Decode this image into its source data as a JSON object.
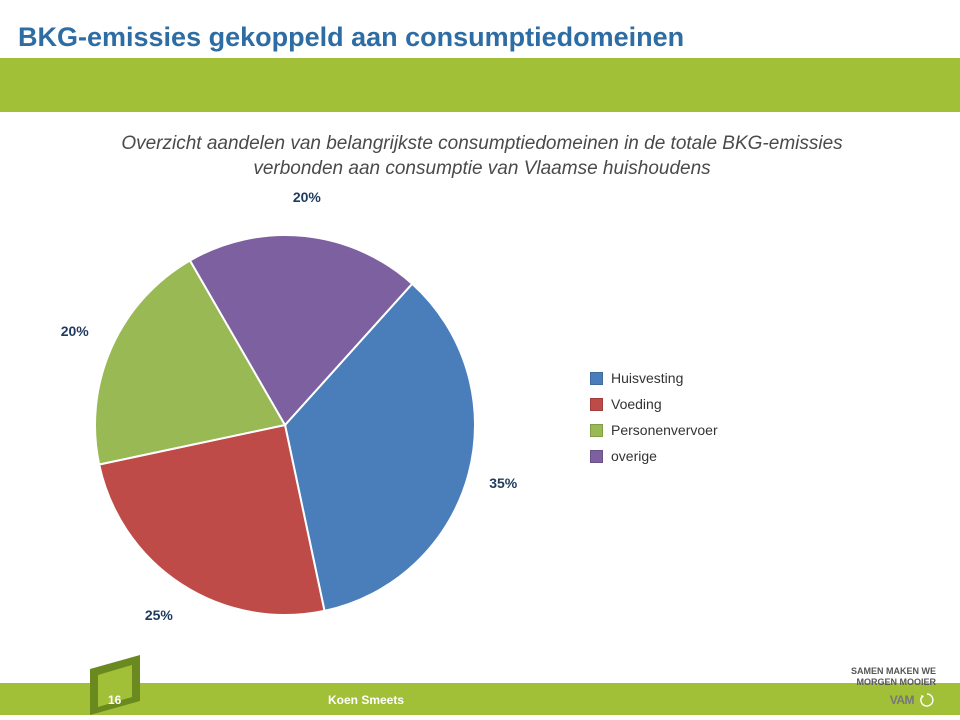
{
  "title": "BKG-emissies gekoppeld aan consumptiedomeinen",
  "subtitle": "Overzicht aandelen van belangrijkste consumptiedomeinen in de totale BKG-emissies verbonden aan consumptie van Vlaamse huishoudens",
  "chart": {
    "type": "pie",
    "start_angle_deg": -48,
    "stroke": "#ffffff",
    "stroke_width": 2,
    "radius": 190,
    "label_radius": 228,
    "label_fontsize": 14,
    "label_color": "#1f3a5f",
    "background_color": "#ffffff",
    "series": [
      {
        "label": "Huisvesting",
        "value": 35,
        "pct_label": "35%",
        "color": "#4a7ebb"
      },
      {
        "label": "Voeding",
        "value": 25,
        "pct_label": "25%",
        "color": "#be4b48"
      },
      {
        "label": "Personenvervoer",
        "value": 20,
        "pct_label": "20%",
        "color": "#98b954"
      },
      {
        "label": "overige",
        "value": 20,
        "pct_label": "20%",
        "color": "#7d60a0"
      }
    ]
  },
  "legend": {
    "swatch_size": 13,
    "fontsize": 14,
    "text_color": "#333333"
  },
  "footer": {
    "page_number": "16",
    "author": "Koen Smeets",
    "slogan_line1": "SAMEN MAKEN WE",
    "slogan_line2": "MORGEN MOOIER",
    "logo_text": "VAM",
    "bar_color": "#a2c037",
    "flag_dark": "#6a8a20",
    "flag_light": "#a2c037"
  },
  "colors": {
    "title": "#2e6ca4",
    "subtitle": "#4a4a4a",
    "accent": "#a2c037"
  }
}
